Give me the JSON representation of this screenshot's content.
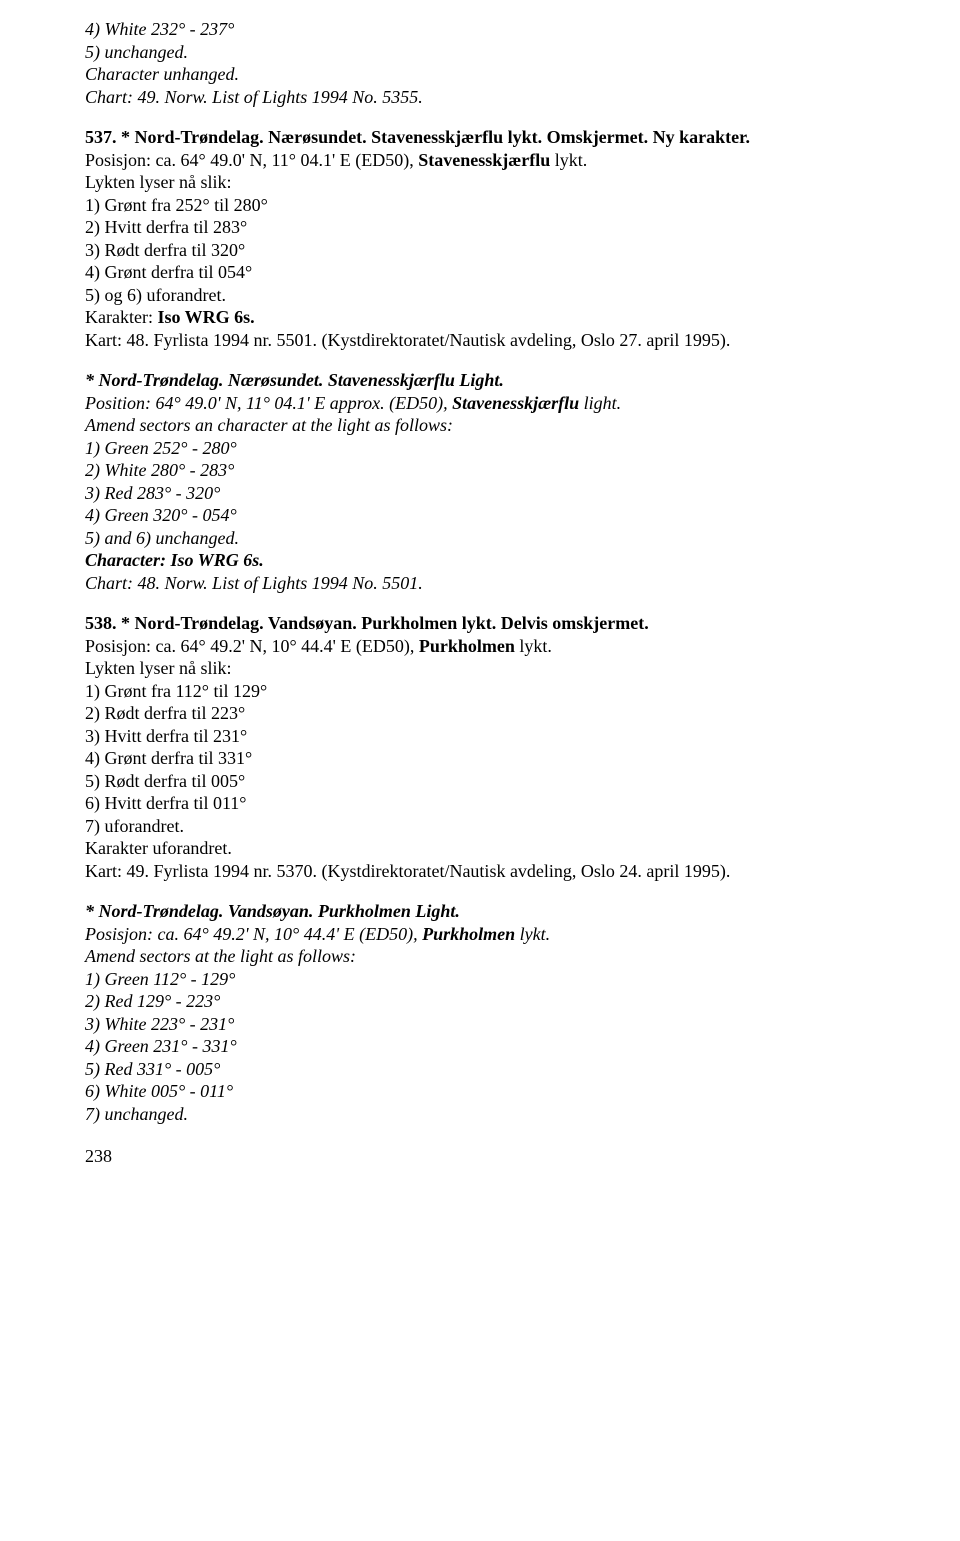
{
  "para1": {
    "l1": "4) White 232° - 237°",
    "l2": "5) unchanged.",
    "l3": "Character unhanged.",
    "l4": "Chart: 49. Norw. List of Lights 1994 No. 5355."
  },
  "para2": {
    "l1a": "537. * Nord-Trøndelag. Nærøsundet. Stavenesskjærflu lykt. Omskjermet. Ny karakter.",
    "l2a": "Posisjon: ca. 64° 49.0' N, 11° 04.1' E (ED50), ",
    "l2b": "Stavenesskjærflu",
    "l2c": " lykt.",
    "l3": "Lykten lyser nå slik:",
    "l4": "1) Grønt fra 252° til 280°",
    "l5": "2) Hvitt derfra til 283°",
    "l6": "3) Rødt derfra til 320°",
    "l7": "4) Grønt derfra til 054°",
    "l8": "5) og 6) uforandret.",
    "l9a": "Karakter: ",
    "l9b": "Iso WRG 6s.",
    "l10": "Kart: 48. Fyrlista 1994 nr. 5501. (Kystdirektoratet/Nautisk avdeling, Oslo 27. april 1995)."
  },
  "para3": {
    "l1": "* Nord-Trøndelag. Nærøsundet. Stavenesskjærflu Light.",
    "l2a": "Position: 64° 49.0' N, 11° 04.1' E approx. (ED50), ",
    "l2b": "Stavenesskjærflu",
    "l2c": " light.",
    "l3": "Amend sectors an character at the light as follows:",
    "l4": "1) Green 252° - 280°",
    "l5": "2) White 280° - 283°",
    "l6": "3) Red 283° - 320°",
    "l7": "4) Green 320° - 054°",
    "l8": "5) and 6) unchanged.",
    "l9": "Character: Iso WRG 6s.",
    "l10": "Chart: 48. Norw. List of Lights 1994 No. 5501."
  },
  "para4": {
    "l1": "538. * Nord-Trøndelag. Vandsøyan. Purkholmen lykt. Delvis omskjermet.",
    "l2a": "Posisjon: ca. 64° 49.2' N, 10° 44.4' E (ED50), ",
    "l2b": "Purkholmen",
    "l2c": " lykt.",
    "l3": "Lykten lyser nå slik:",
    "l4": "1) Grønt fra 112° til 129°",
    "l5": "2) Rødt derfra til 223°",
    "l6": "3) Hvitt derfra til 231°",
    "l7": "4) Grønt derfra til 331°",
    "l8": "5) Rødt derfra til 005°",
    "l9": "6) Hvitt derfra til 011°",
    "l10": "7) uforandret.",
    "l11": "Karakter uforandret.",
    "l12": "Kart: 49. Fyrlista 1994 nr. 5370. (Kystdirektoratet/Nautisk avdeling, Oslo 24. april 1995)."
  },
  "para5": {
    "l1": "* Nord-Trøndelag. Vandsøyan. Purkholmen Light.",
    "l2a": "Posisjon: ca. 64° 49.2' N, 10° 44.4' E (ED50), ",
    "l2b": "Purkholmen",
    "l2c": " lykt.",
    "l3": "Amend sectors at the light as follows:",
    "l4": "1) Green 112° - 129°",
    "l5": "2) Red 129° - 223°",
    "l6": "3) White 223° - 231°",
    "l7": "4) Green 231° - 331°",
    "l8": "5) Red 331° - 005°",
    "l9": "6) White 005° - 011°",
    "l10": "7) unchanged."
  },
  "pagenum": "238"
}
